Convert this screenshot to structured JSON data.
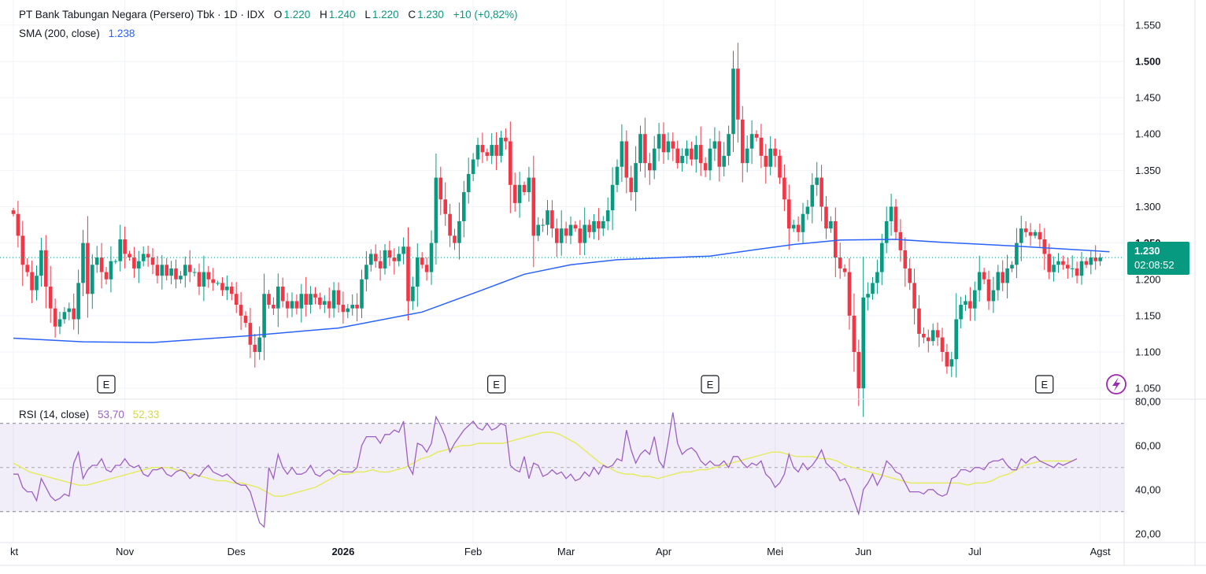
{
  "legend": {
    "symbol": "PT Bank Tabungan Negara (Persero) Tbk · 1D · IDX",
    "o_label": "O",
    "o_value": "1.220",
    "h_label": "H",
    "h_value": "1.240",
    "l_label": "L",
    "l_value": "1.220",
    "c_label": "C",
    "c_value": "1.230",
    "change": "+10 (+0,82%)",
    "sma_label": "SMA (200, close)",
    "sma_value": "1.238",
    "rsi_label": "RSI (14, close)",
    "rsi_value": "53,70",
    "rsi_ma_value": "52,33"
  },
  "price_tag": {
    "price": "1.230",
    "countdown": "02:08:52"
  },
  "earnings_marker": "E",
  "colors": {
    "up": "#089981",
    "down": "#f23645",
    "sma": "#2962ff",
    "rsi": "#9c5fc4",
    "rsi_ma": "#e3eb5a"
  },
  "chart_data": [
    {
      "type": "candlestick",
      "price_ticks": [
        "1.550",
        "1.500",
        "1.450",
        "1.400",
        "1.350",
        "1.300",
        "1.250",
        "1.200",
        "1.150",
        "1.100",
        "1.050"
      ],
      "ylim": [
        1.035,
        1.565
      ],
      "months": [
        {
          "label": "kt",
          "day": 0
        },
        {
          "label": "Nov",
          "day": 24
        },
        {
          "label": "Des",
          "day": 48
        },
        {
          "label": "2026",
          "day": 71,
          "bold": true
        },
        {
          "label": "Feb",
          "day": 99
        },
        {
          "label": "Mar",
          "day": 119
        },
        {
          "label": "Apr",
          "day": 140
        },
        {
          "label": "Mei",
          "day": 164
        },
        {
          "label": "Jun",
          "day": 183
        },
        {
          "label": "Jul",
          "day": 207
        },
        {
          "label": "Agst",
          "day": 234
        }
      ],
      "earnings_days": [
        20,
        104,
        150,
        222
      ],
      "closes": [
        1.29,
        1.26,
        1.22,
        1.21,
        1.185,
        1.205,
        1.24,
        1.19,
        1.16,
        1.135,
        1.145,
        1.155,
        1.16,
        1.145,
        1.195,
        1.25,
        1.18,
        1.22,
        1.23,
        1.21,
        1.2,
        1.225,
        1.225,
        1.255,
        1.235,
        1.23,
        1.215,
        1.225,
        1.235,
        1.23,
        1.22,
        1.205,
        1.22,
        1.205,
        1.215,
        1.2,
        1.205,
        1.22,
        1.21,
        1.21,
        1.19,
        1.21,
        1.2,
        1.195,
        1.195,
        1.185,
        1.19,
        1.18,
        1.165,
        1.15,
        1.14,
        1.11,
        1.1,
        1.12,
        1.18,
        1.165,
        1.16,
        1.19,
        1.17,
        1.16,
        1.17,
        1.16,
        1.18,
        1.165,
        1.18,
        1.175,
        1.165,
        1.17,
        1.16,
        1.185,
        1.165,
        1.155,
        1.16,
        1.165,
        1.16,
        1.2,
        1.22,
        1.235,
        1.225,
        1.215,
        1.24,
        1.23,
        1.225,
        1.235,
        1.245,
        1.17,
        1.19,
        1.23,
        1.22,
        1.21,
        1.25,
        1.34,
        1.31,
        1.29,
        1.26,
        1.25,
        1.28,
        1.32,
        1.345,
        1.365,
        1.385,
        1.375,
        1.37,
        1.385,
        1.37,
        1.395,
        1.39,
        1.33,
        1.305,
        1.33,
        1.32,
        1.34,
        1.26,
        1.275,
        1.275,
        1.295,
        1.27,
        1.25,
        1.27,
        1.26,
        1.275,
        1.27,
        1.25,
        1.275,
        1.265,
        1.28,
        1.27,
        1.28,
        1.295,
        1.33,
        1.355,
        1.39,
        1.34,
        1.32,
        1.36,
        1.4,
        1.36,
        1.35,
        1.38,
        1.4,
        1.375,
        1.39,
        1.38,
        1.36,
        1.37,
        1.38,
        1.365,
        1.385,
        1.36,
        1.35,
        1.38,
        1.39,
        1.355,
        1.37,
        1.4,
        1.49,
        1.42,
        1.36,
        1.38,
        1.4,
        1.395,
        1.37,
        1.355,
        1.38,
        1.37,
        1.34,
        1.31,
        1.27,
        1.275,
        1.265,
        1.29,
        1.3,
        1.33,
        1.34,
        1.3,
        1.27,
        1.28,
        1.23,
        1.215,
        1.21,
        1.15,
        1.1,
        1.05,
        1.175,
        1.18,
        1.195,
        1.21,
        1.25,
        1.28,
        1.3,
        1.265,
        1.24,
        1.215,
        1.195,
        1.16,
        1.125,
        1.12,
        1.115,
        1.13,
        1.12,
        1.1,
        1.08,
        1.09,
        1.145,
        1.165,
        1.17,
        1.16,
        1.185,
        1.21,
        1.2,
        1.17,
        1.185,
        1.21,
        1.195,
        1.215,
        1.22,
        1.25,
        1.27,
        1.265,
        1.26,
        1.265,
        1.255,
        1.235,
        1.21,
        1.22,
        1.225,
        1.22,
        1.215,
        1.215,
        1.205,
        1.225,
        1.22,
        1.23,
        1.225,
        1.23
      ],
      "sma_points": [
        [
          0,
          1.119
        ],
        [
          15,
          1.114
        ],
        [
          30,
          1.113
        ],
        [
          50,
          1.122
        ],
        [
          70,
          1.133
        ],
        [
          88,
          1.155
        ],
        [
          100,
          1.183
        ],
        [
          110,
          1.207
        ],
        [
          120,
          1.22
        ],
        [
          130,
          1.227
        ],
        [
          150,
          1.232
        ],
        [
          160,
          1.241
        ],
        [
          168,
          1.248
        ],
        [
          178,
          1.254
        ],
        [
          190,
          1.255
        ],
        [
          200,
          1.251
        ],
        [
          215,
          1.246
        ],
        [
          236,
          1.238
        ]
      ]
    },
    {
      "type": "line",
      "name": "RSI",
      "rsi_ticks": [
        "80,00",
        "60,00",
        "40,00",
        "20,00"
      ],
      "ylim": [
        16,
        81
      ],
      "band": [
        30,
        70
      ],
      "rsi": [
        47,
        47,
        41,
        39,
        39,
        35,
        45,
        41,
        37,
        35,
        36,
        38,
        37,
        52,
        57,
        45,
        49,
        51,
        51,
        54,
        49,
        48,
        51,
        51,
        54,
        51,
        50,
        51,
        47,
        46,
        49,
        49,
        50,
        47,
        46,
        48,
        49,
        48,
        45,
        47,
        46,
        49,
        51,
        48,
        47,
        46,
        47,
        45,
        43,
        42,
        42,
        39,
        32,
        25,
        23,
        50,
        45,
        56,
        50,
        47,
        50,
        47,
        47,
        48,
        51,
        47,
        46,
        48,
        49,
        47,
        49,
        48,
        48,
        48,
        50,
        60,
        64,
        64,
        64,
        61,
        65,
        65,
        67,
        66,
        71,
        51,
        47,
        61,
        60,
        57,
        61,
        73,
        69,
        64,
        57,
        61,
        64,
        67,
        69,
        71,
        68,
        67,
        70,
        67,
        68,
        70,
        69,
        51,
        49,
        48,
        55,
        45,
        52,
        51,
        46,
        47,
        49,
        47,
        48,
        45,
        47,
        44,
        45,
        48,
        46,
        50,
        47,
        51,
        50,
        51,
        54,
        53,
        67,
        58,
        52,
        56,
        58,
        56,
        64,
        53,
        50,
        62,
        75,
        61,
        56,
        58,
        59,
        57,
        53,
        51,
        53,
        51,
        51,
        53,
        50,
        55,
        55,
        52,
        50,
        52,
        51,
        53,
        47,
        45,
        41,
        43,
        47,
        56,
        50,
        48,
        52,
        49,
        51,
        54,
        58,
        52,
        50,
        48,
        44,
        45,
        41,
        35,
        29,
        40,
        43,
        47,
        42,
        46,
        53,
        51,
        48,
        47,
        43,
        39,
        39,
        39,
        38,
        40,
        40,
        38,
        37,
        38,
        45,
        46,
        49,
        49,
        48,
        50,
        50,
        49,
        52,
        53,
        53,
        54,
        51,
        49,
        49,
        54,
        52,
        54,
        55,
        53,
        52,
        51,
        50,
        52,
        51,
        52,
        53,
        54
      ],
      "rsi_ma": [
        52,
        50,
        48,
        47,
        46,
        45,
        44,
        43,
        42,
        42,
        43,
        44,
        45,
        46,
        47,
        48,
        49,
        50,
        50,
        50,
        49,
        48,
        47,
        46,
        45,
        44,
        44,
        43,
        43,
        42,
        41,
        39,
        37,
        37,
        38,
        39,
        40,
        41,
        43,
        45,
        47,
        47,
        48,
        48,
        49,
        48,
        48,
        49,
        50,
        52,
        54,
        55,
        57,
        58,
        59,
        60,
        60,
        61,
        61,
        61,
        61,
        62,
        63,
        64,
        65,
        66,
        66,
        65,
        63,
        61,
        58,
        55,
        52,
        50,
        48,
        47,
        47,
        46,
        46,
        45,
        46,
        47,
        48,
        48,
        49,
        49,
        50,
        51,
        52,
        53,
        54,
        55,
        56,
        57,
        57,
        56,
        55,
        55,
        55,
        54,
        54,
        53,
        51,
        50,
        49,
        48,
        47,
        46,
        45,
        44,
        43,
        43,
        43,
        43,
        43,
        43,
        43,
        42,
        43,
        43,
        44,
        46,
        47,
        49,
        51,
        52,
        53,
        53,
        53,
        53,
        53
      ]
    }
  ]
}
